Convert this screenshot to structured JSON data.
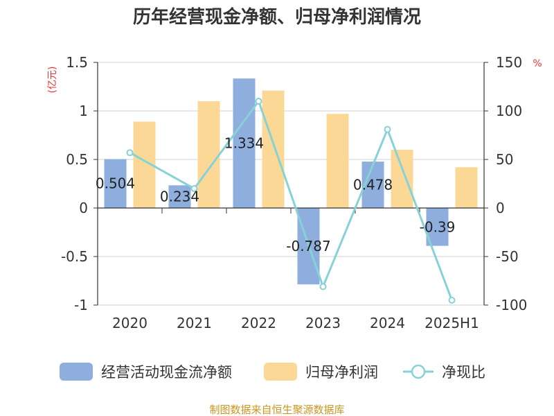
{
  "chart_data": {
    "type": "bar",
    "title": "历年经营现金净额、归母净利润情况",
    "categories": [
      "2020",
      "2021",
      "2022",
      "2023",
      "2024",
      "2025H1"
    ],
    "y_left": {
      "unit": "(亿元)",
      "ylim": [
        -1,
        1.5
      ],
      "ticks": [
        "1.5",
        "1",
        "0.5",
        "0",
        "-0.5",
        "-1"
      ],
      "tick_values": [
        1.5,
        1,
        0.5,
        0,
        -0.5,
        -1
      ]
    },
    "y_right": {
      "unit": "%",
      "ylim": [
        -100,
        150
      ],
      "ticks": [
        "150",
        "100",
        "50",
        "0",
        "-50",
        "-100"
      ],
      "tick_values": [
        150,
        100,
        50,
        0,
        -50,
        -100
      ]
    },
    "grid": true,
    "legend_position": "bottom",
    "series": [
      {
        "name": "经营活动现金流净额",
        "type": "bar",
        "axis": "left",
        "color": "#8eaedd",
        "values": [
          0.504,
          0.234,
          1.334,
          -0.787,
          0.478,
          -0.39
        ],
        "labels": [
          "0.504",
          "0.234",
          "1.334",
          "-0.787",
          "0.478",
          "-0.39"
        ]
      },
      {
        "name": "归母净利润",
        "type": "bar",
        "axis": "left",
        "color": "#fcd897",
        "values": [
          0.89,
          1.1,
          1.21,
          0.97,
          0.6,
          0.42
        ]
      },
      {
        "name": "净现比",
        "type": "line",
        "axis": "right",
        "color": "#86d2d6",
        "values": [
          57,
          20,
          110,
          -81,
          81,
          -95
        ]
      }
    ]
  },
  "source_note": "制图数据来自恒生聚源数据库"
}
